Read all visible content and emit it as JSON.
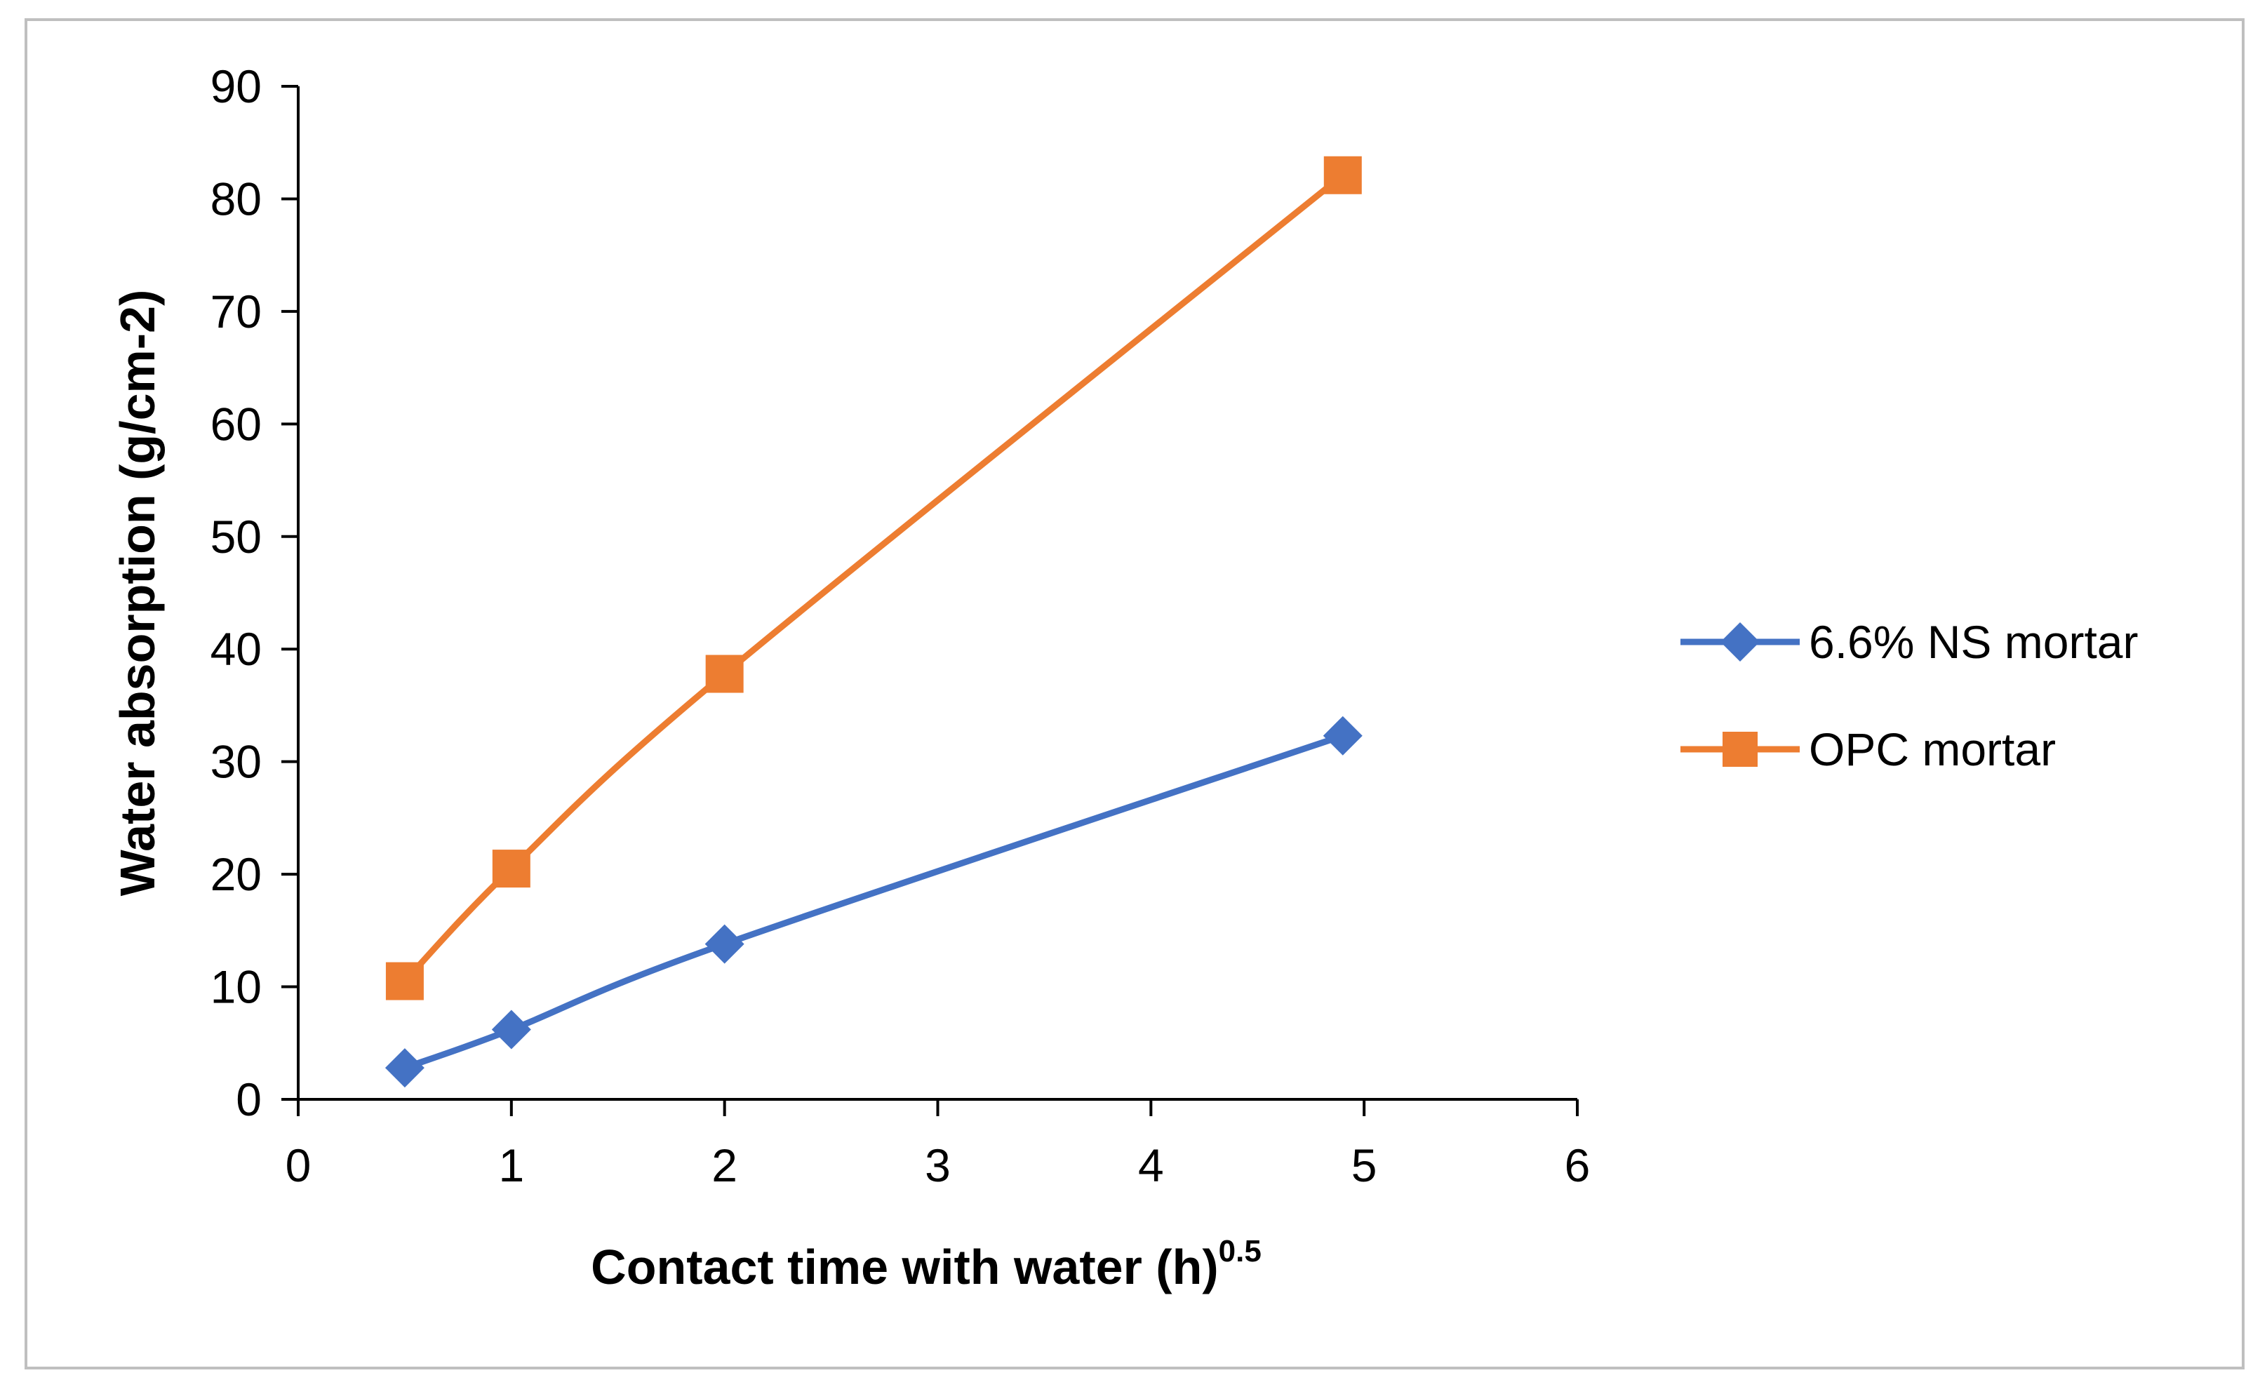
{
  "chart_data": {
    "type": "line",
    "title": "",
    "xlabel": "Contact time with water (h)",
    "xlabel_superscript": "0.5",
    "ylabel": "Water absorption (g/cm-2)",
    "xlim": [
      0,
      6
    ],
    "ylim": [
      0,
      90
    ],
    "xticks": [
      0,
      1,
      2,
      3,
      4,
      5,
      6
    ],
    "yticks": [
      0,
      10,
      20,
      30,
      40,
      50,
      60,
      70,
      80,
      90
    ],
    "grid": false,
    "legend_position": "right",
    "series": [
      {
        "name": "6.6% NS mortar",
        "color": "#4472C4",
        "marker": "diamond",
        "x": [
          0.5,
          1,
          2,
          4.9
        ],
        "values": [
          2.8,
          6.2,
          13.8,
          32.3
        ]
      },
      {
        "name": "OPC mortar",
        "color": "#ED7D31",
        "marker": "square",
        "x": [
          0.5,
          1,
          2,
          4.9
        ],
        "values": [
          10.5,
          20.5,
          37.8,
          82.1
        ]
      }
    ]
  }
}
